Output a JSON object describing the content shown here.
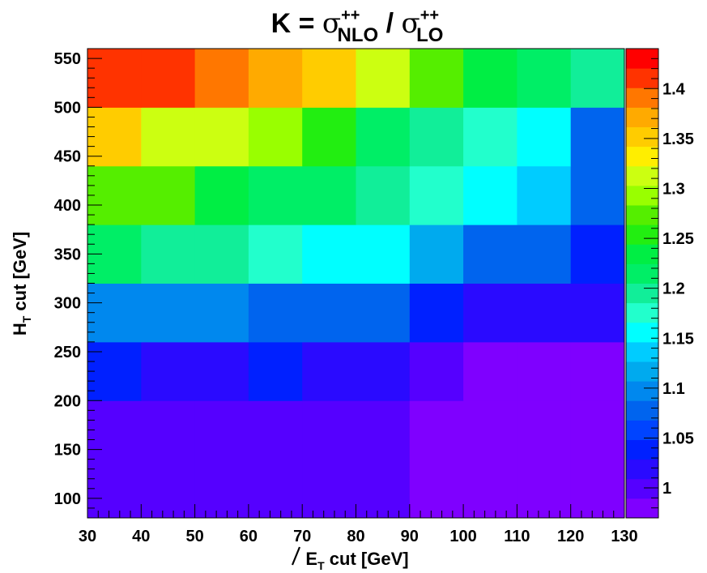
{
  "chart_data": {
    "type": "heatmap",
    "title": {
      "prefix": "K = ",
      "sigma": "σ",
      "sup": "++",
      "num_sub": "NLO",
      "slash": " / ",
      "den_sub": "LO"
    },
    "xlabel": {
      "main": "E",
      "sub": "T",
      "rest": " cut [GeV]"
    },
    "ylabel": {
      "main": "H",
      "sub": "T",
      "rest": " cut [GeV]"
    },
    "xlim": [
      30,
      130
    ],
    "ylim": [
      80,
      560
    ],
    "x_ticks": [
      "30",
      "40",
      "50",
      "60",
      "70",
      "80",
      "90",
      "100",
      "110",
      "120",
      "130"
    ],
    "y_ticks": [
      "100",
      "150",
      "200",
      "250",
      "300",
      "350",
      "400",
      "450",
      "500",
      "550"
    ],
    "x_edges": [
      30,
      40,
      50,
      60,
      70,
      80,
      90,
      100,
      110,
      120,
      130
    ],
    "y_edges": [
      80,
      200,
      260,
      320,
      380,
      440,
      500,
      560
    ],
    "z_levels": [
      1.39,
      1.44
    ],
    "zlim": [
      0.97,
      1.44
    ],
    "z_ticks": [
      "1",
      "1.05",
      "1.1",
      "1.15",
      "1.2",
      "1.25",
      "1.3",
      "1.35",
      "1.4"
    ],
    "palette": [
      "#7f00ff",
      "#5500ff",
      "#2a0aff",
      "#0020ff",
      "#0044ff",
      "#0064ee",
      "#0088ee",
      "#00aaee",
      "#00ccff",
      "#00ffff",
      "#22ffcc",
      "#11ee99",
      "#00ee66",
      "#00ee44",
      "#22ee11",
      "#55ee00",
      "#99ff00",
      "#ccff11",
      "#ffee00",
      "#ffcc00",
      "#ffaa00",
      "#ff7700",
      "#ff3300",
      "#ff0000"
    ],
    "z": [
      [
        1.005,
        1.005,
        1.005,
        1.005,
        1.005,
        1.005,
        0.98,
        0.98,
        0.98,
        0.98
      ],
      [
        1.045,
        1.02,
        1.02,
        1.045,
        1.02,
        1.02,
        1.005,
        0.98,
        0.98,
        0.98
      ],
      [
        1.105,
        1.105,
        1.105,
        1.08,
        1.08,
        1.07,
        1.035,
        1.02,
        1.02,
        1.02
      ],
      [
        1.205,
        1.19,
        1.19,
        1.175,
        1.16,
        1.16,
        1.12,
        1.07,
        1.07,
        1.045
      ],
      [
        1.27,
        1.27,
        1.24,
        1.21,
        1.21,
        1.19,
        1.18,
        1.16,
        1.13,
        1.07
      ],
      [
        1.355,
        1.32,
        1.31,
        1.285,
        1.25,
        1.22,
        1.19,
        1.17,
        1.15,
        1.08
      ],
      [
        1.42,
        1.42,
        1.39,
        1.37,
        1.35,
        1.305,
        1.27,
        1.23,
        1.21,
        1.19
      ]
    ]
  }
}
